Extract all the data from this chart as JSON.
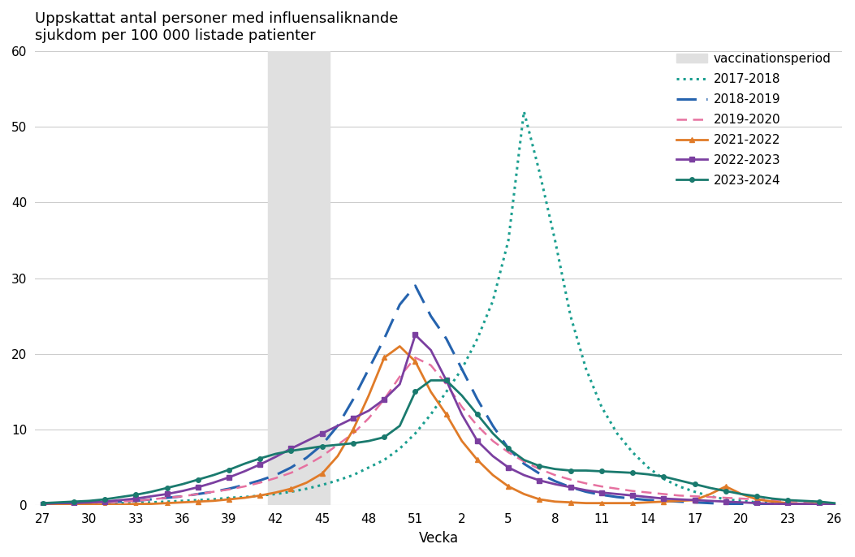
{
  "title": "Uppskattat antal personer med influensaliknande\nsjukdom per 100 000 listade patienter",
  "xlabel": "Vecka",
  "ylim": [
    0,
    60
  ],
  "yticks": [
    0,
    10,
    20,
    30,
    40,
    50,
    60
  ],
  "xtick_labels": [
    "27",
    "30",
    "33",
    "36",
    "39",
    "42",
    "45",
    "48",
    "51",
    "2",
    "5",
    "8",
    "11",
    "14",
    "17",
    "20",
    "23",
    "26"
  ],
  "background_color": "#ffffff",
  "series": [
    {
      "label": "2017-2018",
      "color": "#1a9e8f",
      "linestyle": "dotted",
      "linewidth": 2.2,
      "marker": null,
      "values": [
        0.1,
        0.1,
        0.1,
        0.2,
        0.2,
        0.3,
        0.3,
        0.4,
        0.5,
        0.6,
        0.7,
        0.8,
        1.0,
        1.1,
        1.3,
        1.5,
        1.8,
        2.2,
        2.7,
        3.3,
        4.0,
        5.0,
        6.0,
        7.5,
        9.5,
        12.0,
        15.0,
        18.0,
        22.0,
        27.0,
        35.0,
        52.0,
        44.0,
        35.0,
        25.0,
        18.0,
        13.0,
        9.5,
        7.0,
        5.0,
        3.5,
        2.5,
        1.8,
        1.2,
        0.8,
        0.6,
        0.4,
        0.3,
        0.2,
        0.2,
        0.1,
        0.1
      ]
    },
    {
      "label": "2018-2019",
      "color": "#2563ae",
      "linestyle": "dashed",
      "linewidth": 2.2,
      "marker": null,
      "dash_pattern": [
        8,
        4
      ],
      "values": [
        0.2,
        0.2,
        0.3,
        0.3,
        0.4,
        0.5,
        0.6,
        0.8,
        1.0,
        1.2,
        1.5,
        1.8,
        2.2,
        2.7,
        3.3,
        4.0,
        5.0,
        6.3,
        8.0,
        10.5,
        14.0,
        18.0,
        22.0,
        26.5,
        29.0,
        25.0,
        22.0,
        18.0,
        14.0,
        10.5,
        7.5,
        5.5,
        4.2,
        3.2,
        2.4,
        1.8,
        1.4,
        1.1,
        0.9,
        0.7,
        0.6,
        0.5,
        0.4,
        0.3,
        0.2,
        0.2,
        0.1,
        0.1,
        0.1,
        0.1,
        0.1,
        0.1
      ]
    },
    {
      "label": "2019-2020",
      "color": "#e671a0",
      "linestyle": "dashed",
      "linewidth": 1.8,
      "marker": null,
      "dash_pattern": [
        5,
        3
      ],
      "values": [
        0.1,
        0.2,
        0.2,
        0.3,
        0.4,
        0.5,
        0.6,
        0.8,
        1.0,
        1.2,
        1.5,
        1.8,
        2.1,
        2.5,
        3.0,
        3.6,
        4.3,
        5.3,
        6.5,
        8.0,
        9.5,
        11.5,
        14.0,
        17.0,
        19.5,
        18.5,
        16.0,
        13.0,
        10.5,
        8.5,
        7.0,
        5.8,
        4.8,
        4.0,
        3.4,
        2.9,
        2.5,
        2.2,
        1.9,
        1.7,
        1.5,
        1.3,
        1.2,
        1.1,
        1.0,
        0.9,
        0.8,
        0.7,
        0.6,
        0.5,
        0.4,
        0.3
      ]
    },
    {
      "label": "2021-2022",
      "color": "#e07b28",
      "linestyle": "solid",
      "linewidth": 2.0,
      "marker": "^",
      "markersize": 4,
      "values": [
        0.1,
        0.1,
        0.1,
        0.1,
        0.1,
        0.1,
        0.2,
        0.2,
        0.3,
        0.4,
        0.5,
        0.6,
        0.8,
        1.0,
        1.3,
        1.7,
        2.2,
        3.0,
        4.2,
        6.5,
        10.0,
        14.5,
        19.5,
        21.0,
        19.0,
        15.0,
        12.0,
        8.5,
        6.0,
        4.0,
        2.5,
        1.5,
        0.8,
        0.5,
        0.4,
        0.3,
        0.3,
        0.3,
        0.3,
        0.4,
        0.5,
        0.6,
        0.7,
        1.5,
        2.5,
        1.5,
        0.8,
        0.5,
        0.3,
        0.2,
        0.2,
        0.1
      ]
    },
    {
      "label": "2022-2023",
      "color": "#7b3fa0",
      "linestyle": "solid",
      "linewidth": 2.0,
      "marker": "s",
      "markersize": 4,
      "values": [
        0.2,
        0.3,
        0.3,
        0.4,
        0.5,
        0.7,
        0.9,
        1.2,
        1.5,
        1.9,
        2.4,
        3.0,
        3.7,
        4.5,
        5.4,
        6.4,
        7.5,
        8.5,
        9.5,
        10.5,
        11.5,
        12.5,
        14.0,
        16.0,
        22.5,
        20.5,
        16.5,
        12.0,
        8.5,
        6.5,
        5.0,
        4.0,
        3.3,
        2.8,
        2.4,
        2.0,
        1.7,
        1.5,
        1.3,
        1.1,
        0.9,
        0.8,
        0.7,
        0.6,
        0.5,
        0.4,
        0.3,
        0.2,
        0.2,
        0.2,
        0.1,
        0.1
      ]
    },
    {
      "label": "2023-2024",
      "color": "#1a7a6e",
      "linestyle": "solid",
      "linewidth": 2.0,
      "marker": "o",
      "markersize": 4,
      "values": [
        0.3,
        0.4,
        0.5,
        0.6,
        0.8,
        1.1,
        1.4,
        1.8,
        2.3,
        2.8,
        3.4,
        4.0,
        4.7,
        5.5,
        6.2,
        6.8,
        7.2,
        7.5,
        7.8,
        8.0,
        8.2,
        8.5,
        9.0,
        10.5,
        15.0,
        16.5,
        16.5,
        14.5,
        12.0,
        9.5,
        7.5,
        6.0,
        5.2,
        4.8,
        4.6,
        4.6,
        4.5,
        4.4,
        4.3,
        4.1,
        3.8,
        3.3,
        2.8,
        2.3,
        1.9,
        1.5,
        1.2,
        0.9,
        0.7,
        0.6,
        0.5,
        0.3
      ]
    }
  ]
}
